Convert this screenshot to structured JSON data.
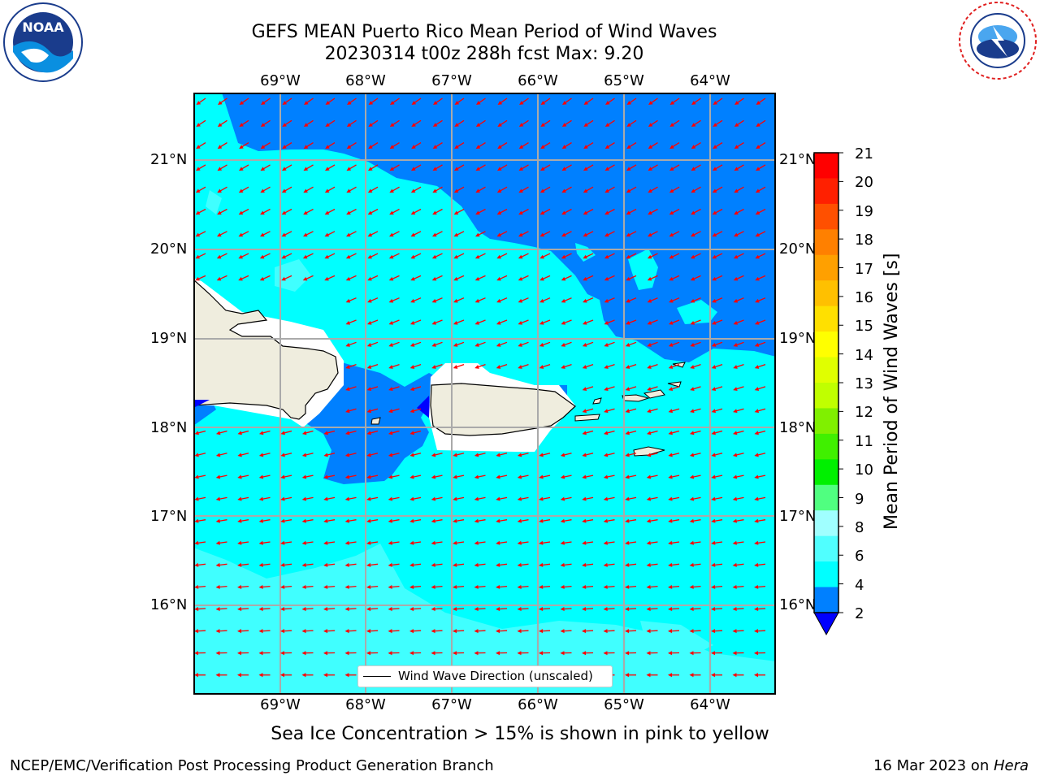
{
  "header": {
    "title_line1": "GEFS MEAN Puerto Rico Mean Period of Wind Waves",
    "title_line2": "20230314 t00z 288h fcst   Max: 9.20"
  },
  "logos": {
    "left": {
      "name": "NOAA",
      "ring_text": "NATIONAL OCEANIC AND ATMOSPHERIC ADMINISTRATION · U.S. DEPARTMENT OF COMMERCE"
    },
    "right": {
      "name": "NATIONAL WEATHER SERVICE"
    }
  },
  "map": {
    "lon_labels": [
      "69°W",
      "68°W",
      "67°W",
      "66°W",
      "65°W",
      "64°W"
    ],
    "lat_labels": [
      "21°N",
      "20°N",
      "19°N",
      "18°N",
      "17°N",
      "16°N"
    ],
    "legend_text": "Wind Wave Direction (unscaled)",
    "colors": {
      "deep_blue": "#0000ff",
      "blue": "#0080ff",
      "cyan": "#00ffff",
      "light_cyan": "#40ffff",
      "land": "#efedde",
      "arrow": "#ff0000"
    }
  },
  "colorbar": {
    "label": "Mean Period of Wind Waves [s]",
    "ticks": [
      "21",
      "20",
      "19",
      "18",
      "17",
      "16",
      "15",
      "14",
      "13",
      "12",
      "11",
      "10",
      "9",
      "8",
      "6",
      "4",
      "2"
    ],
    "colors": [
      "#ff0000",
      "#ff2000",
      "#ff5000",
      "#ff8000",
      "#ffa000",
      "#ffc000",
      "#ffe000",
      "#ffff00",
      "#e0ff00",
      "#c0ff00",
      "#80f000",
      "#40f000",
      "#00f000",
      "#50ff80",
      "#a0ffff",
      "#50ffff",
      "#00ffff",
      "#0080ff"
    ],
    "extend_color": "#0000ff"
  },
  "footer": {
    "note": "Sea Ice Concentration > 15% is shown in pink to yellow",
    "left": "NCEP/EMC/Verification Post Processing Product Generation Branch",
    "right_date": "16 Mar 2023 on ",
    "right_host": "Hera"
  }
}
